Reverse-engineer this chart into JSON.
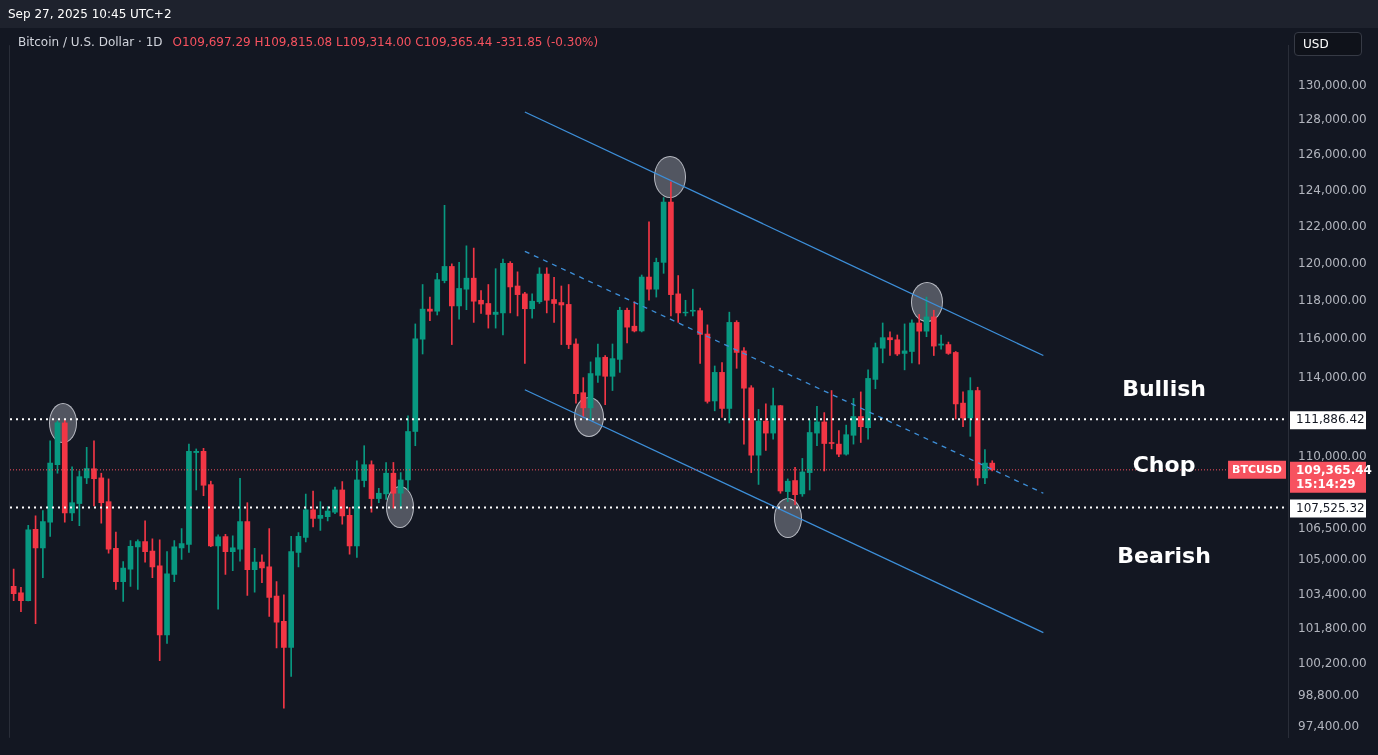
{
  "chart_data": {
    "type": "candlestick",
    "title": "Bitcoin / U.S. Dollar · 1D",
    "subtitle": "O109,697.29 H109,815.08 L109,314.00 C109,365.44 -331.85 (-0.30%)",
    "categories": [
      null,
      null,
      null,
      null,
      null,
      null,
      null,
      null,
      null,
      null,
      null,
      null,
      null,
      null,
      null,
      null,
      null,
      null,
      null,
      null,
      null,
      null,
      null,
      null,
      null,
      null,
      null,
      null,
      null,
      null,
      null,
      null,
      null,
      null,
      null,
      null,
      null,
      null,
      null,
      null,
      null,
      null,
      null,
      null,
      null,
      null,
      null,
      null,
      null,
      null,
      null,
      null,
      null,
      null,
      null,
      null,
      null,
      null,
      null,
      null,
      null,
      null,
      null,
      null,
      null,
      null,
      null,
      null,
      null,
      null,
      null,
      null,
      null,
      null,
      null,
      null,
      null,
      null,
      null,
      null,
      null,
      null,
      null,
      null,
      null,
      null,
      null,
      null,
      null,
      null,
      null,
      null,
      null,
      null,
      null,
      null,
      null,
      null,
      null,
      null,
      null,
      null,
      null,
      null,
      null,
      null,
      null,
      null,
      null,
      null,
      null,
      null,
      null,
      null,
      null,
      null,
      null,
      null,
      null,
      null,
      null,
      null,
      null,
      null,
      null,
      null,
      null,
      null,
      null,
      null,
      null,
      null,
      null,
      null,
      null,
      null,
      null,
      null,
      null,
      null,
      null,
      null,
      null,
      null,
      null,
      null,
      null,
      null,
      null,
      null,
      null,
      null,
      null,
      null,
      null,
      null,
      null,
      null,
      null,
      null,
      null,
      null,
      null,
      null,
      null,
      null,
      null,
      null,
      null,
      null,
      null,
      null,
      null,
      null,
      null
    ],
    "colors": [
      "#f23645",
      "#f23645",
      "#089981",
      "#f23645",
      "#089981",
      "#089981",
      "#089981",
      "#f23645",
      "#089981",
      "#089981",
      "#089981",
      "#f23645",
      "#f23645",
      "#f23645",
      "#f23645",
      "#089981",
      "#089981",
      "#089981",
      "#f23645",
      "#f23645",
      "#f23645",
      "#089981",
      "#089981",
      "#089981",
      "#089981",
      "#089981",
      "#f23645",
      "#f23645",
      "#089981",
      "#f23645",
      "#089981",
      "#089981",
      "#f23645",
      "#089981",
      "#f23645",
      "#f23645",
      "#f23645",
      "#f23645",
      "#089981",
      "#089981",
      "#089981",
      "#f23645",
      "#089981",
      "#089981",
      "#089981",
      "#f23645",
      "#f23645",
      "#089981",
      "#089981",
      "#f23645",
      "#089981",
      "#089981",
      "#f23645",
      "#089981",
      "#089981",
      "#089981",
      "#089981",
      "#f23645",
      "#089981",
      "#089981",
      "#f23645",
      "#089981",
      "#089981",
      "#f23645",
      "#f23645",
      "#f23645",
      "#089981",
      "#089981",
      "#f23645",
      "#f23645",
      "#f23645",
      "#089981",
      "#089981",
      "#f23645",
      "#f23645",
      "#f23645",
      "#f23645",
      "#f23645",
      "#f23645",
      "#089981",
      "#089981",
      "#f23645",
      "#089981",
      "#089981",
      "#f23645",
      "#f23645",
      "#089981",
      "#f23645",
      "#089981",
      "#089981",
      "#f23645",
      "#f23645",
      "#089981",
      "#089981",
      "#f23645",
      "#f23645",
      "#089981",
      "#f23645",
      "#089981",
      "#f23645",
      "#f23645",
      "#f23645",
      "#089981",
      "#f23645",
      "#089981",
      "#f23645",
      "#089981",
      "#f23645",
      "#089981",
      "#089981",
      "#089981",
      "#f23645",
      "#f23645",
      "#f23645",
      "#089981",
      "#089981",
      "#f23645",
      "#089981",
      "#089981",
      "#089981",
      "#f23645",
      "#f23645",
      "#089981",
      "#089981",
      "#f23645",
      "#089981",
      "#f23645",
      "#089981",
      "#f23645",
      "#f23645",
      "#f23645",
      "#089981",
      "#f23645",
      "#089981",
      "#f23645",
      null,
      null,
      null,
      null,
      null,
      null,
      null,
      null,
      null,
      null,
      null,
      null,
      null,
      null,
      null,
      null,
      null,
      null,
      null,
      null,
      null,
      null,
      null,
      null,
      null,
      null,
      null,
      null,
      null,
      null,
      null,
      null,
      null,
      null,
      null,
      null,
      null,
      null,
      null,
      null
    ],
    "ohlc": [
      [
        103780,
        104590,
        103110,
        103440
      ],
      [
        103480,
        103730,
        102600,
        103110
      ],
      [
        103110,
        106670,
        103100,
        106450
      ],
      [
        106480,
        107120,
        102050,
        105590
      ],
      [
        105590,
        107380,
        104190,
        106850
      ],
      [
        106820,
        110800,
        106140,
        109700
      ],
      [
        109620,
        111800,
        109200,
        111710
      ],
      [
        111700,
        111880,
        106820,
        107260
      ],
      [
        107270,
        109510,
        106890,
        107760
      ],
      [
        107720,
        109310,
        106650,
        109030
      ],
      [
        108970,
        110480,
        108690,
        109430
      ],
      [
        109420,
        110800,
        107610,
        108930
      ],
      [
        108970,
        109200,
        106770,
        107760
      ],
      [
        107810,
        108920,
        105340,
        105530
      ],
      [
        105570,
        106350,
        103630,
        104000
      ],
      [
        104000,
        104940,
        103080,
        104640
      ],
      [
        104590,
        105940,
        103780,
        105670
      ],
      [
        105640,
        105980,
        103630,
        105890
      ],
      [
        105890,
        106890,
        104920,
        105410
      ],
      [
        105440,
        106020,
        104190,
        104690
      ],
      [
        104740,
        105970,
        100360,
        101540
      ],
      [
        101540,
        105410,
        101150,
        104370
      ],
      [
        104340,
        105940,
        104000,
        105640
      ],
      [
        105590,
        106510,
        105040,
        105790
      ],
      [
        105750,
        110640,
        105370,
        110280
      ],
      [
        110220,
        110400,
        108380,
        110280
      ],
      [
        110280,
        110430,
        108100,
        108610
      ],
      [
        108640,
        108810,
        105650,
        105680
      ],
      [
        105680,
        106210,
        102720,
        106120
      ],
      [
        106130,
        106240,
        104340,
        105410
      ],
      [
        105410,
        106170,
        104510,
        105590
      ],
      [
        105530,
        108950,
        104960,
        106850
      ],
      [
        106850,
        107760,
        103360,
        104560
      ],
      [
        104560,
        105570,
        103510,
        104920
      ],
      [
        104920,
        105260,
        103950,
        104640
      ],
      [
        104690,
        106510,
        102380,
        103260
      ],
      [
        103330,
        104000,
        100940,
        102120
      ],
      [
        102160,
        103380,
        98240,
        100960
      ],
      [
        100960,
        106140,
        99650,
        105410
      ],
      [
        105370,
        106320,
        104690,
        106140
      ],
      [
        106090,
        108180,
        105870,
        107410
      ],
      [
        107410,
        108330,
        106590,
        107000
      ],
      [
        107000,
        107810,
        106420,
        107150
      ],
      [
        107080,
        107570,
        106880,
        107350
      ],
      [
        107300,
        108520,
        107230,
        108380
      ],
      [
        108380,
        108790,
        106730,
        107120
      ],
      [
        107150,
        107530,
        105290,
        105680
      ],
      [
        105680,
        109810,
        105140,
        108870
      ],
      [
        108840,
        110560,
        108530,
        109620
      ],
      [
        109620,
        109810,
        107300,
        107960
      ],
      [
        107960,
        108460,
        107760,
        108220
      ],
      [
        108190,
        109730,
        107920,
        109200
      ],
      [
        109200,
        109730,
        107500,
        108220
      ],
      [
        108220,
        109230,
        107460,
        108870
      ],
      [
        108870,
        112060,
        108380,
        111270
      ],
      [
        111270,
        116790,
        110560,
        116010
      ],
      [
        115990,
        118880,
        115220,
        117570
      ],
      [
        117570,
        118210,
        116960,
        117460
      ],
      [
        117460,
        119480,
        117260,
        119140
      ],
      [
        119090,
        123190,
        118970,
        119850
      ],
      [
        119850,
        119990,
        115710,
        117740
      ],
      [
        117740,
        120070,
        117040,
        118670
      ],
      [
        118630,
        120970,
        117540,
        119220
      ],
      [
        119220,
        120840,
        116870,
        117990
      ],
      [
        118040,
        118550,
        117340,
        117840
      ],
      [
        117870,
        118880,
        116570,
        117290
      ],
      [
        117290,
        119730,
        116570,
        117410
      ],
      [
        117370,
        120250,
        116210,
        120020
      ],
      [
        120020,
        120110,
        117370,
        118750
      ],
      [
        118800,
        119560,
        117210,
        118340
      ],
      [
        118380,
        118460,
        114730,
        117590
      ],
      [
        117590,
        118380,
        117090,
        117990
      ],
      [
        117960,
        119780,
        117870,
        119440
      ],
      [
        119440,
        119780,
        117370,
        118040
      ],
      [
        118080,
        119260,
        116870,
        117870
      ],
      [
        117920,
        118800,
        115710,
        117790
      ],
      [
        117820,
        118880,
        115500,
        115710
      ],
      [
        115740,
        116010,
        112700,
        113180
      ],
      [
        113230,
        114000,
        111980,
        112460
      ],
      [
        112460,
        114810,
        111900,
        114210
      ],
      [
        114120,
        115740,
        113750,
        115030
      ],
      [
        115050,
        115140,
        112620,
        114070
      ],
      [
        114070,
        115740,
        113340,
        114980
      ],
      [
        114940,
        117670,
        114270,
        117510
      ],
      [
        117510,
        117620,
        115790,
        116620
      ],
      [
        116670,
        117960,
        116370,
        116420
      ],
      [
        116420,
        119390,
        116370,
        119280
      ],
      [
        119280,
        122280,
        118040,
        118630
      ],
      [
        118630,
        120300,
        118210,
        120070
      ],
      [
        120070,
        123630,
        119480,
        123370
      ],
      [
        123370,
        124510,
        117210,
        118340
      ],
      [
        118380,
        119360,
        116870,
        117370
      ],
      [
        117370,
        118040,
        117210,
        117410
      ],
      [
        117460,
        118630,
        117210,
        117510
      ],
      [
        117490,
        117620,
        114730,
        116240
      ],
      [
        116260,
        116740,
        112700,
        112790
      ],
      [
        112810,
        114600,
        112310,
        114270
      ],
      [
        114270,
        114780,
        111980,
        112430
      ],
      [
        112430,
        117410,
        111700,
        116870
      ],
      [
        116870,
        116960,
        114480,
        115300
      ],
      [
        115380,
        115550,
        110640,
        113460
      ],
      [
        113480,
        113590,
        109230,
        110090
      ],
      [
        110090,
        112380,
        108650,
        111790
      ],
      [
        111790,
        112660,
        110320,
        111190
      ],
      [
        111190,
        113460,
        110880,
        112570
      ],
      [
        112570,
        112590,
        108220,
        108330
      ],
      [
        108300,
        108920,
        107810,
        108810
      ],
      [
        108840,
        109490,
        107670,
        108150
      ],
      [
        108190,
        109930,
        108070,
        109260
      ],
      [
        109230,
        111830,
        108380,
        111220
      ],
      [
        111190,
        112540,
        110560,
        111750
      ],
      [
        111750,
        112220,
        109310,
        110670
      ],
      [
        110720,
        113340,
        110400,
        110670
      ],
      [
        110640,
        111320,
        110010,
        110140
      ],
      [
        110140,
        111590,
        110090,
        111110
      ],
      [
        111080,
        112940,
        110640,
        112020
      ],
      [
        112020,
        113270,
        110720,
        111510
      ],
      [
        111460,
        114400,
        110880,
        113960
      ],
      [
        113910,
        115790,
        113430,
        115550
      ],
      [
        115520,
        116840,
        114760,
        116070
      ],
      [
        116070,
        116370,
        115140,
        115960
      ],
      [
        115960,
        116210,
        115140,
        115220
      ],
      [
        115250,
        116790,
        114400,
        115380
      ],
      [
        115350,
        117010,
        114760,
        116840
      ],
      [
        116840,
        117290,
        114700,
        116410
      ],
      [
        116410,
        118210,
        116120,
        117160
      ],
      [
        117160,
        117510,
        115140,
        115630
      ],
      [
        115680,
        116210,
        115470,
        115740
      ],
      [
        115710,
        115840,
        115200,
        115250
      ],
      [
        115300,
        115350,
        111900,
        112660
      ],
      [
        112700,
        113270,
        111510,
        111950
      ],
      [
        111950,
        114000,
        111030,
        113340
      ],
      [
        113340,
        113510,
        108610,
        108970
      ],
      [
        108970,
        110370,
        108690,
        109700
      ],
      [
        109697.29,
        109815.08,
        109314,
        109365.44
      ],
      null,
      null,
      null,
      null,
      null,
      null,
      null,
      null,
      null,
      null,
      null,
      null,
      null,
      null,
      null,
      null,
      null,
      null,
      null,
      null,
      null,
      null,
      null,
      null,
      null,
      null,
      null,
      null,
      null,
      null,
      null,
      null,
      null,
      null,
      null,
      null,
      null,
      null,
      null,
      null
    ],
    "series": [
      {
        "type": "line",
        "color": "#3d8fd9",
        "line_style": "solid",
        "values": [
          null,
          null,
          null,
          null,
          null,
          null,
          null,
          null,
          null,
          null,
          null,
          null,
          null,
          null,
          null,
          null,
          null,
          null,
          null,
          null,
          null,
          null,
          null,
          null,
          null,
          null,
          null,
          null,
          null,
          null,
          null,
          null,
          null,
          null,
          null,
          null,
          null,
          null,
          null,
          null,
          null,
          null,
          null,
          null,
          null,
          null,
          null,
          null,
          null,
          null,
          null,
          null,
          null,
          null,
          null,
          null,
          null,
          null,
          null,
          null,
          null,
          null,
          null,
          null,
          null,
          null,
          null,
          null,
          null,
          null,
          128480,
          null,
          null,
          null,
          null,
          null,
          null,
          null,
          null,
          null,
          null,
          null,
          null,
          null,
          null,
          null,
          null,
          null,
          null,
          null,
          null,
          null,
          null,
          null,
          null,
          null,
          null,
          null,
          null,
          null,
          null,
          null,
          null,
          null,
          null,
          null,
          null,
          null,
          null,
          null,
          null,
          null,
          null,
          null,
          null,
          null,
          null,
          null,
          null,
          null,
          null,
          null,
          null,
          null,
          null,
          null,
          null,
          null,
          null,
          null,
          null,
          null,
          null,
          null,
          null,
          null,
          null,
          null,
          null,
          null,
          null,
          115140,
          null,
          null,
          null,
          null,
          null,
          null,
          null,
          null,
          null,
          null,
          null,
          null,
          null,
          null,
          null,
          null,
          null,
          null,
          null,
          null,
          null,
          null,
          null,
          null,
          null,
          null,
          null,
          null,
          null,
          null,
          null,
          null,
          null
        ]
      },
      {
        "type": "line",
        "color": "#3d8fd9",
        "line_style": "dashed",
        "values": [
          null,
          null,
          null,
          null,
          null,
          null,
          null,
          null,
          null,
          null,
          null,
          null,
          null,
          null,
          null,
          null,
          null,
          null,
          null,
          null,
          null,
          null,
          null,
          null,
          null,
          null,
          null,
          null,
          null,
          null,
          null,
          null,
          null,
          null,
          null,
          null,
          null,
          null,
          null,
          null,
          null,
          null,
          null,
          null,
          null,
          null,
          null,
          null,
          null,
          null,
          null,
          null,
          null,
          null,
          null,
          null,
          null,
          null,
          null,
          null,
          null,
          null,
          null,
          null,
          null,
          null,
          null,
          null,
          null,
          null,
          120670,
          null,
          null,
          null,
          null,
          null,
          null,
          null,
          null,
          null,
          null,
          null,
          null,
          null,
          null,
          null,
          null,
          null,
          null,
          null,
          null,
          null,
          null,
          null,
          null,
          null,
          null,
          null,
          null,
          null,
          null,
          null,
          null,
          null,
          null,
          null,
          null,
          null,
          null,
          null,
          null,
          null,
          null,
          null,
          null,
          null,
          null,
          null,
          null,
          null,
          null,
          null,
          null,
          null,
          null,
          null,
          null,
          null,
          null,
          null,
          null,
          null,
          null,
          null,
          null,
          null,
          null,
          null,
          null,
          null,
          null,
          108220,
          null,
          null,
          null,
          null,
          null,
          null,
          null,
          null,
          null,
          null,
          null,
          null,
          null,
          null,
          null,
          null,
          null,
          null,
          null,
          null,
          null,
          null,
          null,
          null,
          null,
          null,
          null,
          null,
          null,
          null,
          null,
          null,
          null
        ]
      },
      {
        "type": "line",
        "color": "#3d8fd9",
        "line_style": "solid",
        "values": [
          null,
          null,
          null,
          null,
          null,
          null,
          null,
          null,
          null,
          null,
          null,
          null,
          null,
          null,
          null,
          null,
          null,
          null,
          null,
          null,
          null,
          null,
          null,
          null,
          null,
          null,
          null,
          null,
          null,
          null,
          null,
          null,
          null,
          null,
          null,
          null,
          null,
          null,
          null,
          null,
          null,
          null,
          null,
          null,
          null,
          null,
          null,
          null,
          null,
          null,
          null,
          null,
          null,
          null,
          null,
          null,
          null,
          null,
          null,
          null,
          null,
          null,
          null,
          null,
          null,
          null,
          null,
          null,
          null,
          null,
          113380,
          null,
          null,
          null,
          null,
          null,
          null,
          null,
          null,
          null,
          null,
          null,
          null,
          null,
          null,
          null,
          null,
          null,
          null,
          null,
          null,
          null,
          null,
          null,
          null,
          null,
          null,
          null,
          null,
          null,
          null,
          null,
          null,
          null,
          null,
          null,
          null,
          null,
          null,
          null,
          null,
          null,
          null,
          null,
          null,
          null,
          null,
          null,
          null,
          null,
          null,
          null,
          null,
          null,
          null,
          null,
          null,
          null,
          null,
          null,
          null,
          null,
          null,
          null,
          null,
          null,
          null,
          null,
          null,
          null,
          null,
          101640,
          null,
          null,
          null,
          null,
          null,
          null,
          null,
          null,
          null,
          null,
          null,
          null,
          null,
          null,
          null,
          null,
          null,
          null,
          null,
          null,
          null,
          null,
          null,
          null,
          null,
          null,
          null,
          null,
          null,
          null,
          null,
          null,
          null
        ]
      }
    ],
    "ylim": [
      96940,
      132400
    ],
    "yticks": [
      {
        "value": 97400,
        "label": "97,400.00"
      },
      {
        "value": 98800,
        "label": "98,800.00"
      },
      {
        "value": 100200,
        "label": "100,200.00"
      },
      {
        "value": 101800,
        "label": "101,800.00"
      },
      {
        "value": 103400,
        "label": "103,400.00"
      },
      {
        "value": 105000,
        "label": "105,000.00"
      },
      {
        "value": 106500,
        "label": "106,500.00"
      },
      {
        "value": 110000,
        "label": "110,000.00"
      },
      {
        "value": 114000,
        "label": "114,000.00"
      },
      {
        "value": 116000,
        "label": "116,000.00"
      },
      {
        "value": 118000,
        "label": "118,000.00"
      },
      {
        "value": 120000,
        "label": "120,000.00"
      },
      {
        "value": 122000,
        "label": "122,000.00"
      },
      {
        "value": 124000,
        "label": "124,000.00"
      },
      {
        "value": 126000,
        "label": "126,000.00"
      },
      {
        "value": 128000,
        "label": "128,000.00"
      },
      {
        "value": 130000,
        "label": "130,000.00"
      }
    ],
    "log": "y",
    "tick_labels": "y",
    "ref_lines": [
      {
        "axis": "y",
        "value": 111886.42,
        "label": "111,886.42",
        "color": "#ffffff",
        "line_style": "dotted"
      },
      {
        "axis": "y",
        "value": 107525.32,
        "label": "107,525.32",
        "color": "#ffffff",
        "line_style": "dotted"
      },
      {
        "axis": "y",
        "value": 109365.44,
        "label": "109,365.44",
        "color": "#f7525f",
        "line_style": "dotted"
      }
    ],
    "annotations": [
      "Sep 27, 2025 10:45 UTC+2",
      "USD",
      "Bullish",
      "Chop",
      "Bearish",
      "BTCUSD",
      "15:14:29"
    ]
  }
}
